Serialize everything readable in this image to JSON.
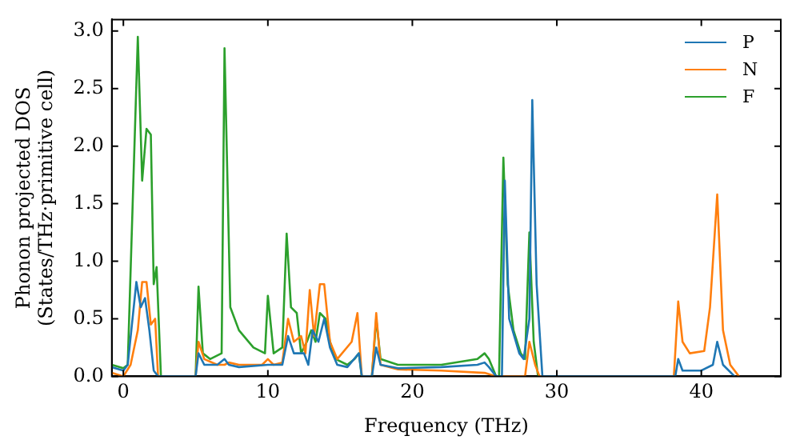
{
  "chart_data": {
    "type": "line",
    "xlabel": "Frequency (THz)",
    "ylabel": "Phonon projected DOS\n(States/THz·primitive cell)",
    "xlim": [
      -0.8,
      45.5
    ],
    "xticks": [
      0,
      10,
      20,
      30,
      40
    ],
    "ylim": [
      0,
      3.1
    ],
    "yticks": [
      {
        "value": 0,
        "label": "0.0"
      },
      {
        "value": 0.5,
        "label": "0.5"
      },
      {
        "value": 1,
        "label": "1.0"
      },
      {
        "value": 1.5,
        "label": "1.5"
      },
      {
        "value": 2,
        "label": "2.0"
      },
      {
        "value": 2.5,
        "label": "2.5"
      },
      {
        "value": 3,
        "label": "3.0"
      }
    ],
    "grid": false,
    "legend": "top right",
    "marker": "none",
    "line_style": "solid",
    "series": [
      {
        "name": "P",
        "color": "#1f77b4",
        "x": [
          -0.8,
          0,
          0.3,
          0.9,
          1.2,
          1.5,
          1.8,
          2.1,
          2.4,
          5,
          5.2,
          5.6,
          6.5,
          7,
          7.3,
          8,
          10,
          11,
          11.4,
          11.8,
          12.5,
          12.8,
          13.1,
          13.5,
          13.9,
          14.3,
          14.8,
          15.5,
          16.3,
          16.5,
          17.2,
          17.5,
          17.8,
          19,
          22,
          24.5,
          25,
          25.3,
          25.8,
          26.2,
          26.4,
          26.7,
          27.4,
          27.7,
          28.1,
          28.3,
          28.6,
          29,
          38.2,
          38.4,
          38.7,
          40,
          40.8,
          41.1,
          41.5,
          42.3
        ],
        "values": [
          0.08,
          0.05,
          0.1,
          0.82,
          0.6,
          0.68,
          0.4,
          0.05,
          0,
          0,
          0.2,
          0.1,
          0.1,
          0.15,
          0.1,
          0.08,
          0.1,
          0.1,
          0.35,
          0.2,
          0.2,
          0.1,
          0.4,
          0.3,
          0.5,
          0.25,
          0.1,
          0.08,
          0.2,
          0,
          0,
          0.25,
          0.1,
          0.07,
          0.08,
          0.1,
          0.12,
          0.08,
          0,
          0,
          1.7,
          0.5,
          0.2,
          0.15,
          0.5,
          2.4,
          0.8,
          0,
          0,
          0.15,
          0.05,
          0.05,
          0.1,
          0.3,
          0.1,
          0
        ]
      },
      {
        "name": "N",
        "color": "#ff7f0e",
        "x": [
          -0.8,
          0,
          0.5,
          1,
          1.3,
          1.6,
          1.9,
          2.2,
          2.4,
          5,
          5.2,
          5.6,
          6.5,
          7,
          7.3,
          8,
          9.6,
          10,
          10.4,
          11,
          11.4,
          11.8,
          12.3,
          12.6,
          12.9,
          13.2,
          13.6,
          13.9,
          14.3,
          14.8,
          15.8,
          16.2,
          16.5,
          17.2,
          17.5,
          17.8,
          19,
          22,
          25,
          25.8,
          27.8,
          28.1,
          28.5,
          28.8,
          38.1,
          38.4,
          38.7,
          39.2,
          40.2,
          40.6,
          41.1,
          41.5,
          42,
          42.6
        ],
        "values": [
          0.03,
          0,
          0.1,
          0.4,
          0.82,
          0.82,
          0.45,
          0.5,
          0,
          0,
          0.3,
          0.15,
          0.1,
          0.1,
          0.12,
          0.1,
          0.1,
          0.15,
          0.1,
          0.12,
          0.5,
          0.3,
          0.35,
          0.2,
          0.75,
          0.35,
          0.8,
          0.8,
          0.3,
          0.15,
          0.3,
          0.55,
          0,
          0,
          0.55,
          0.1,
          0.06,
          0.05,
          0.03,
          0,
          0,
          0.3,
          0.1,
          0,
          0,
          0.65,
          0.3,
          0.2,
          0.22,
          0.6,
          1.58,
          0.4,
          0.1,
          0
        ]
      },
      {
        "name": "F",
        "color": "#2ca02c",
        "x": [
          -0.8,
          0,
          0.3,
          1,
          1.3,
          1.6,
          1.9,
          2.1,
          2.3,
          2.6,
          5,
          5.2,
          5.5,
          6,
          6.8,
          7,
          7.4,
          8,
          9,
          9.8,
          10,
          10.4,
          11,
          11.3,
          11.6,
          12,
          12.3,
          12.7,
          13,
          13.3,
          13.6,
          14,
          14.3,
          14.7,
          15.5,
          16,
          16.3,
          16.5,
          17.2,
          17.5,
          17.8,
          19,
          22,
          24.5,
          25,
          25.3,
          25.8,
          26,
          26.3,
          26.6,
          27,
          27.5,
          27.8,
          28.1,
          28.4,
          28.7
        ],
        "values": [
          0.1,
          0.07,
          0.1,
          2.95,
          1.7,
          2.15,
          2.1,
          0.8,
          0.95,
          0,
          0,
          0.78,
          0.2,
          0.15,
          0.2,
          2.85,
          0.6,
          0.4,
          0.25,
          0.2,
          0.7,
          0.2,
          0.25,
          1.24,
          0.6,
          0.55,
          0.2,
          0.3,
          0.4,
          0.3,
          0.55,
          0.5,
          0.3,
          0.15,
          0.1,
          0.15,
          0.2,
          0,
          0,
          0.5,
          0.15,
          0.1,
          0.1,
          0.15,
          0.2,
          0.15,
          0,
          0,
          1.9,
          0.8,
          0.4,
          0.2,
          0.15,
          1.25,
          0.3,
          0
        ]
      }
    ]
  }
}
